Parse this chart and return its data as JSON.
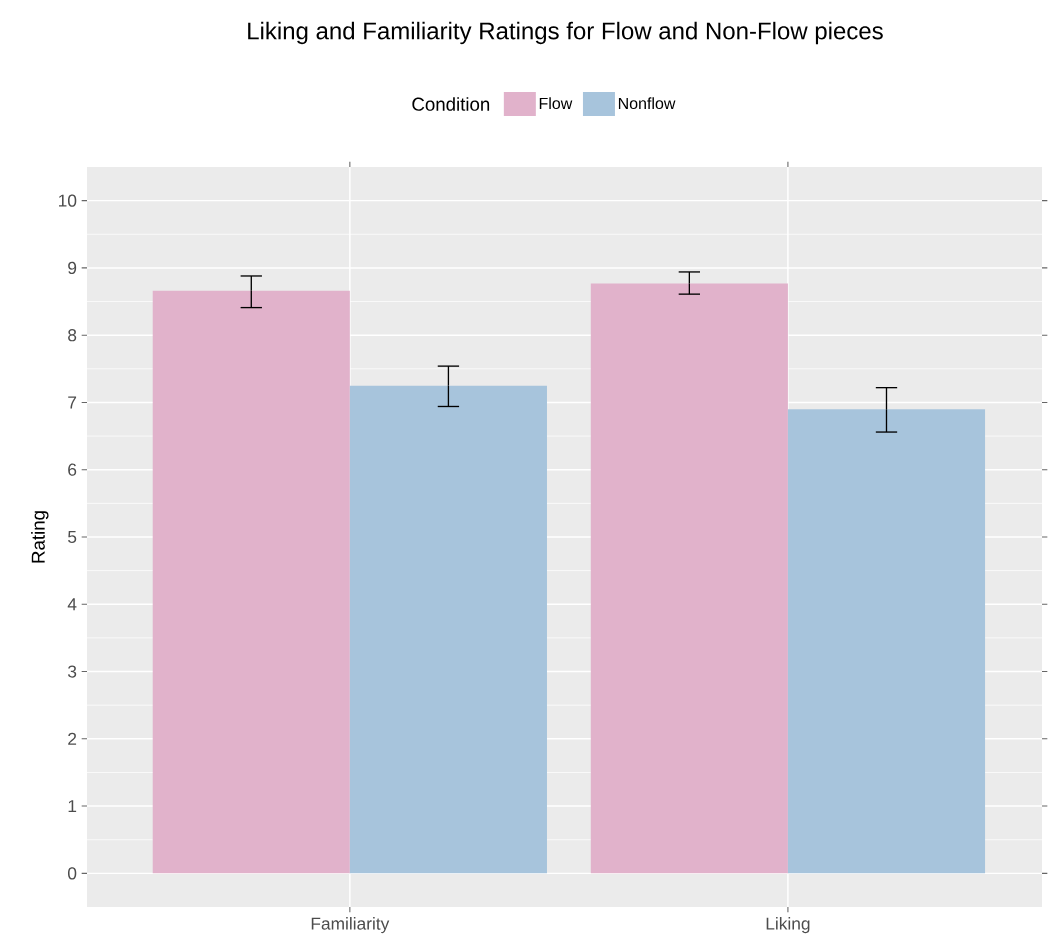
{
  "chart_data": {
    "type": "bar",
    "title": "Liking and Familiarity Ratings for Flow and Non-Flow pieces",
    "ylabel": "Rating",
    "legend_title": "Condition",
    "categories": [
      "Familiarity",
      "Liking"
    ],
    "series": [
      {
        "name": "Flow",
        "color": "#e1b2cb",
        "values": [
          8.66,
          8.77
        ],
        "errors": [
          [
            8.41,
            8.88
          ],
          [
            8.61,
            8.94
          ]
        ]
      },
      {
        "name": "Nonflow",
        "color": "#a7c4dc",
        "values": [
          7.25,
          6.9
        ],
        "errors": [
          [
            6.94,
            7.54
          ],
          [
            6.56,
            7.22
          ]
        ]
      }
    ],
    "ylim": [
      -0.5,
      10.5
    ],
    "yticks": [
      0,
      1,
      2,
      3,
      4,
      5,
      6,
      7,
      8,
      9,
      10
    ],
    "grid": true,
    "legend": "top"
  }
}
